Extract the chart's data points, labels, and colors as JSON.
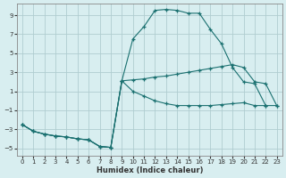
{
  "xlabel": "Humidex (Indice chaleur)",
  "ylabel": "",
  "bg_color": "#d8eef0",
  "grid_color": "#b0cdd0",
  "line_color": "#1a7070",
  "xlim": [
    -0.5,
    23.5
  ],
  "ylim": [
    -5.8,
    10.2
  ],
  "xticks": [
    0,
    1,
    2,
    3,
    4,
    5,
    6,
    7,
    8,
    9,
    10,
    11,
    12,
    13,
    14,
    15,
    16,
    17,
    18,
    19,
    20,
    21,
    22,
    23
  ],
  "yticks": [
    -5,
    -3,
    -1,
    1,
    3,
    5,
    7,
    9
  ],
  "line1_x": [
    0,
    1,
    2,
    3,
    4,
    5,
    6,
    7,
    8,
    9,
    10,
    11,
    12,
    13,
    14,
    15,
    16,
    17,
    18,
    19,
    20,
    21,
    22,
    23
  ],
  "line1_y": [
    -2.5,
    -3.2,
    -3.5,
    -3.7,
    -3.8,
    -4.0,
    -4.1,
    -4.8,
    -4.9,
    2.1,
    6.5,
    7.8,
    9.5,
    9.6,
    9.5,
    9.2,
    9.2,
    7.5,
    6.0,
    3.5,
    2.0,
    1.8,
    -0.5,
    null
  ],
  "line2_x": [
    0,
    1,
    2,
    3,
    4,
    5,
    6,
    7,
    8,
    9,
    10,
    11,
    12,
    13,
    14,
    15,
    16,
    17,
    18,
    19,
    20,
    21,
    22,
    23
  ],
  "line2_y": [
    -2.5,
    -3.2,
    -3.5,
    -3.7,
    -3.8,
    -4.0,
    -4.1,
    -4.8,
    -4.9,
    2.1,
    2.2,
    2.3,
    2.5,
    2.6,
    2.8,
    3.0,
    3.2,
    3.4,
    3.6,
    3.8,
    3.5,
    2.0,
    1.8,
    -0.5
  ],
  "line3_x": [
    0,
    1,
    2,
    3,
    4,
    5,
    6,
    7,
    8,
    9,
    10,
    11,
    12,
    13,
    14,
    15,
    16,
    17,
    18,
    19,
    20,
    21,
    22,
    23
  ],
  "line3_y": [
    -2.5,
    -3.2,
    -3.5,
    -3.7,
    -3.8,
    -4.0,
    -4.1,
    -4.8,
    -4.9,
    2.1,
    1.0,
    0.5,
    0.0,
    -0.3,
    -0.5,
    -0.5,
    -0.5,
    -0.5,
    -0.4,
    -0.3,
    -0.2,
    -0.5,
    -0.5,
    -0.5
  ]
}
